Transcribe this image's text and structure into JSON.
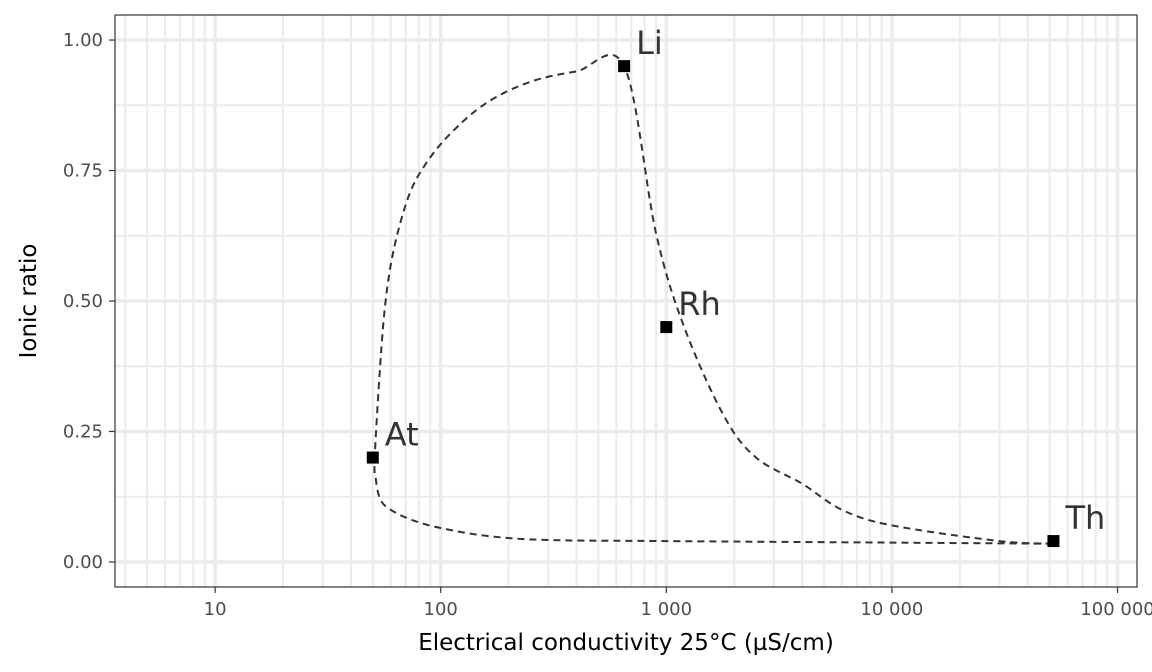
{
  "chart_data": {
    "type": "scatter",
    "title": "",
    "xlabel": "Electrical conductivity 25°C (µS/cm)",
    "ylabel": "Ionic ratio",
    "x_scale": "log10",
    "xlim": [
      3.6,
      122000
    ],
    "ylim": [
      -0.048,
      1.048
    ],
    "grid": true,
    "legend": "none",
    "x_ticks": [
      {
        "value": 10,
        "label": "10"
      },
      {
        "value": 100,
        "label": "100"
      },
      {
        "value": 1000,
        "label": "1 000"
      },
      {
        "value": 10000,
        "label": "10 000"
      },
      {
        "value": 100000,
        "label": "100 000"
      }
    ],
    "y_ticks": [
      {
        "value": 0,
        "label": "0.00"
      },
      {
        "value": 0.25,
        "label": "0.25"
      },
      {
        "value": 0.5,
        "label": "0.50"
      },
      {
        "value": 0.75,
        "label": "0.75"
      },
      {
        "value": 1,
        "label": "1.00"
      }
    ],
    "points": [
      {
        "label": "Li",
        "x": 650,
        "y": 0.95
      },
      {
        "label": "Rh",
        "x": 1000,
        "y": 0.45
      },
      {
        "label": "At",
        "x": 50,
        "y": 0.2
      },
      {
        "label": "Th",
        "x": 52000,
        "y": 0.04
      }
    ],
    "curve": [
      [
        52000,
        0.035
      ],
      [
        30000,
        0.04
      ],
      [
        10000,
        0.07
      ],
      [
        6000,
        0.1
      ],
      [
        4000,
        0.15
      ],
      [
        2500,
        0.2
      ],
      [
        1800,
        0.28
      ],
      [
        1200,
        0.45
      ],
      [
        900,
        0.63
      ],
      [
        650,
        0.95
      ],
      [
        400,
        0.94
      ],
      [
        250,
        0.92
      ],
      [
        160,
        0.88
      ],
      [
        110,
        0.82
      ],
      [
        85,
        0.76
      ],
      [
        72,
        0.7
      ],
      [
        62,
        0.6
      ],
      [
        57,
        0.5
      ],
      [
        54,
        0.38
      ],
      [
        51,
        0.2
      ],
      [
        51.5,
        0.16
      ],
      [
        54,
        0.12
      ],
      [
        60,
        0.1
      ],
      [
        75,
        0.08
      ],
      [
        100,
        0.065
      ],
      [
        160,
        0.05
      ],
      [
        300,
        0.042
      ],
      [
        1000,
        0.04
      ],
      [
        10000,
        0.037
      ],
      [
        52000,
        0.035
      ]
    ],
    "style": {
      "point_color": "#000000",
      "curve_color": "#333333",
      "grid_color": "#ebebeb",
      "panel_border": "#333333"
    }
  }
}
